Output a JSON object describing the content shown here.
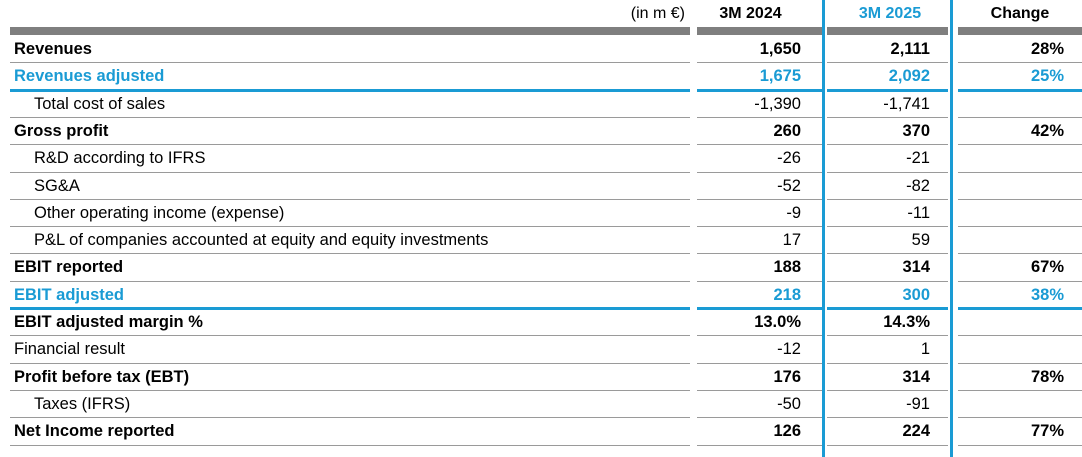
{
  "header": {
    "unit": "(in m €)",
    "col1": "3M 2024",
    "col2": "3M 2025",
    "col3": "Change"
  },
  "colors": {
    "accent": "#1a9bd4",
    "bar": "#7f7f7f"
  },
  "rows": [
    {
      "label": "Revenues",
      "v1": "1,650",
      "v2": "2,111",
      "chg": "28%",
      "style": "bold"
    },
    {
      "label": "Revenues adjusted",
      "v1": "1,675",
      "v2": "2,092",
      "chg": "25%",
      "style": "accent"
    },
    {
      "label": "Total cost of sales",
      "v1": "-1,390",
      "v2": "-1,741",
      "chg": "",
      "style": "indent"
    },
    {
      "label": "Gross profit",
      "v1": "260",
      "v2": "370",
      "chg": "42%",
      "style": "bold"
    },
    {
      "label": "R&D according to IFRS",
      "v1": "-26",
      "v2": "-21",
      "chg": "",
      "style": "indent"
    },
    {
      "label": "SG&A",
      "v1": "-52",
      "v2": "-82",
      "chg": "",
      "style": "indent"
    },
    {
      "label": "Other operating income (expense)",
      "v1": "-9",
      "v2": "-11",
      "chg": "",
      "style": "indent"
    },
    {
      "label": "P&L of companies accounted at equity and equity investments",
      "v1": "17",
      "v2": "59",
      "chg": "",
      "style": "indent"
    },
    {
      "label": "EBIT reported",
      "v1": "188",
      "v2": "314",
      "chg": "67%",
      "style": "bold"
    },
    {
      "label": "EBIT adjusted",
      "v1": "218",
      "v2": "300",
      "chg": "38%",
      "style": "accent"
    },
    {
      "label": "EBIT adjusted margin %",
      "v1": "13.0%",
      "v2": "14.3%",
      "chg": "",
      "style": "bold"
    },
    {
      "label": "Financial result",
      "v1": "-12",
      "v2": "1",
      "chg": "",
      "style": "plain"
    },
    {
      "label": "Profit before tax (EBT)",
      "v1": "176",
      "v2": "314",
      "chg": "78%",
      "style": "bold"
    },
    {
      "label": "Taxes (IFRS)",
      "v1": "-50",
      "v2": "-91",
      "chg": "",
      "style": "indent"
    },
    {
      "label": "Net Income reported",
      "v1": "126",
      "v2": "224",
      "chg": "77%",
      "style": "bold"
    }
  ]
}
